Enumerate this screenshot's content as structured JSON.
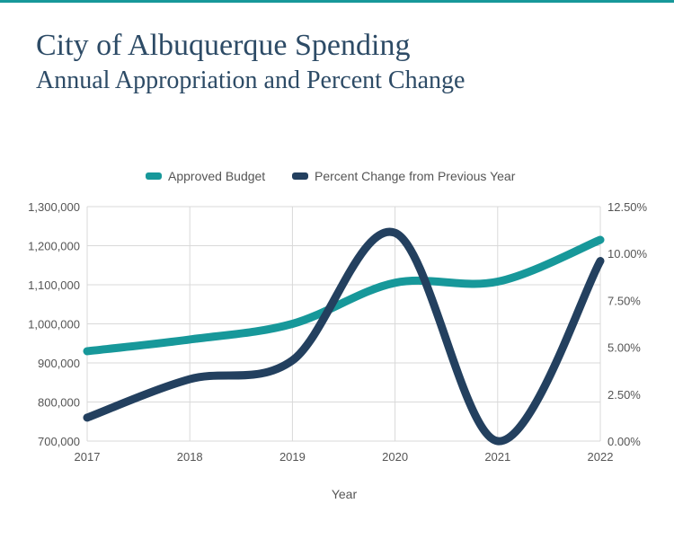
{
  "page": {
    "title": "City of Albuquerque Spending",
    "subtitle": "Annual Appropriation and Percent Change"
  },
  "colors": {
    "accent": "#17989a",
    "navy": "#23405f",
    "title": "#2d4b66",
    "grid": "#d9d9d9"
  },
  "chart_data": {
    "type": "line",
    "title": "City of Albuquerque Spending",
    "subtitle": "Annual Appropriation and Percent Change",
    "xlabel": "Year",
    "ylabel_left": "",
    "ylabel_right": "",
    "categories": [
      "2017",
      "2018",
      "2019",
      "2020",
      "2021",
      "2022"
    ],
    "series": [
      {
        "name": "Approved Budget",
        "axis": "left",
        "color": "#17989a",
        "values": [
          930000,
          960000,
          1000000,
          1105000,
          1108000,
          1215000
        ]
      },
      {
        "name": "Percent Change from Previous Year",
        "axis": "right",
        "color": "#23405f",
        "values": [
          1.25,
          3.3,
          4.3,
          11.1,
          0.0,
          9.6
        ]
      }
    ],
    "ylim_left": [
      700000,
      1300000
    ],
    "ylim_right": [
      0,
      12.5
    ],
    "yticks_left": [
      "700,000",
      "800,000",
      "900,000",
      "1,000,000",
      "1,100,000",
      "1,200,000",
      "1,300,000"
    ],
    "yticks_right": [
      "0.00%",
      "2.50%",
      "5.00%",
      "7.50%",
      "10.00%",
      "12.50%"
    ],
    "grid": true,
    "legend_position": "top"
  }
}
